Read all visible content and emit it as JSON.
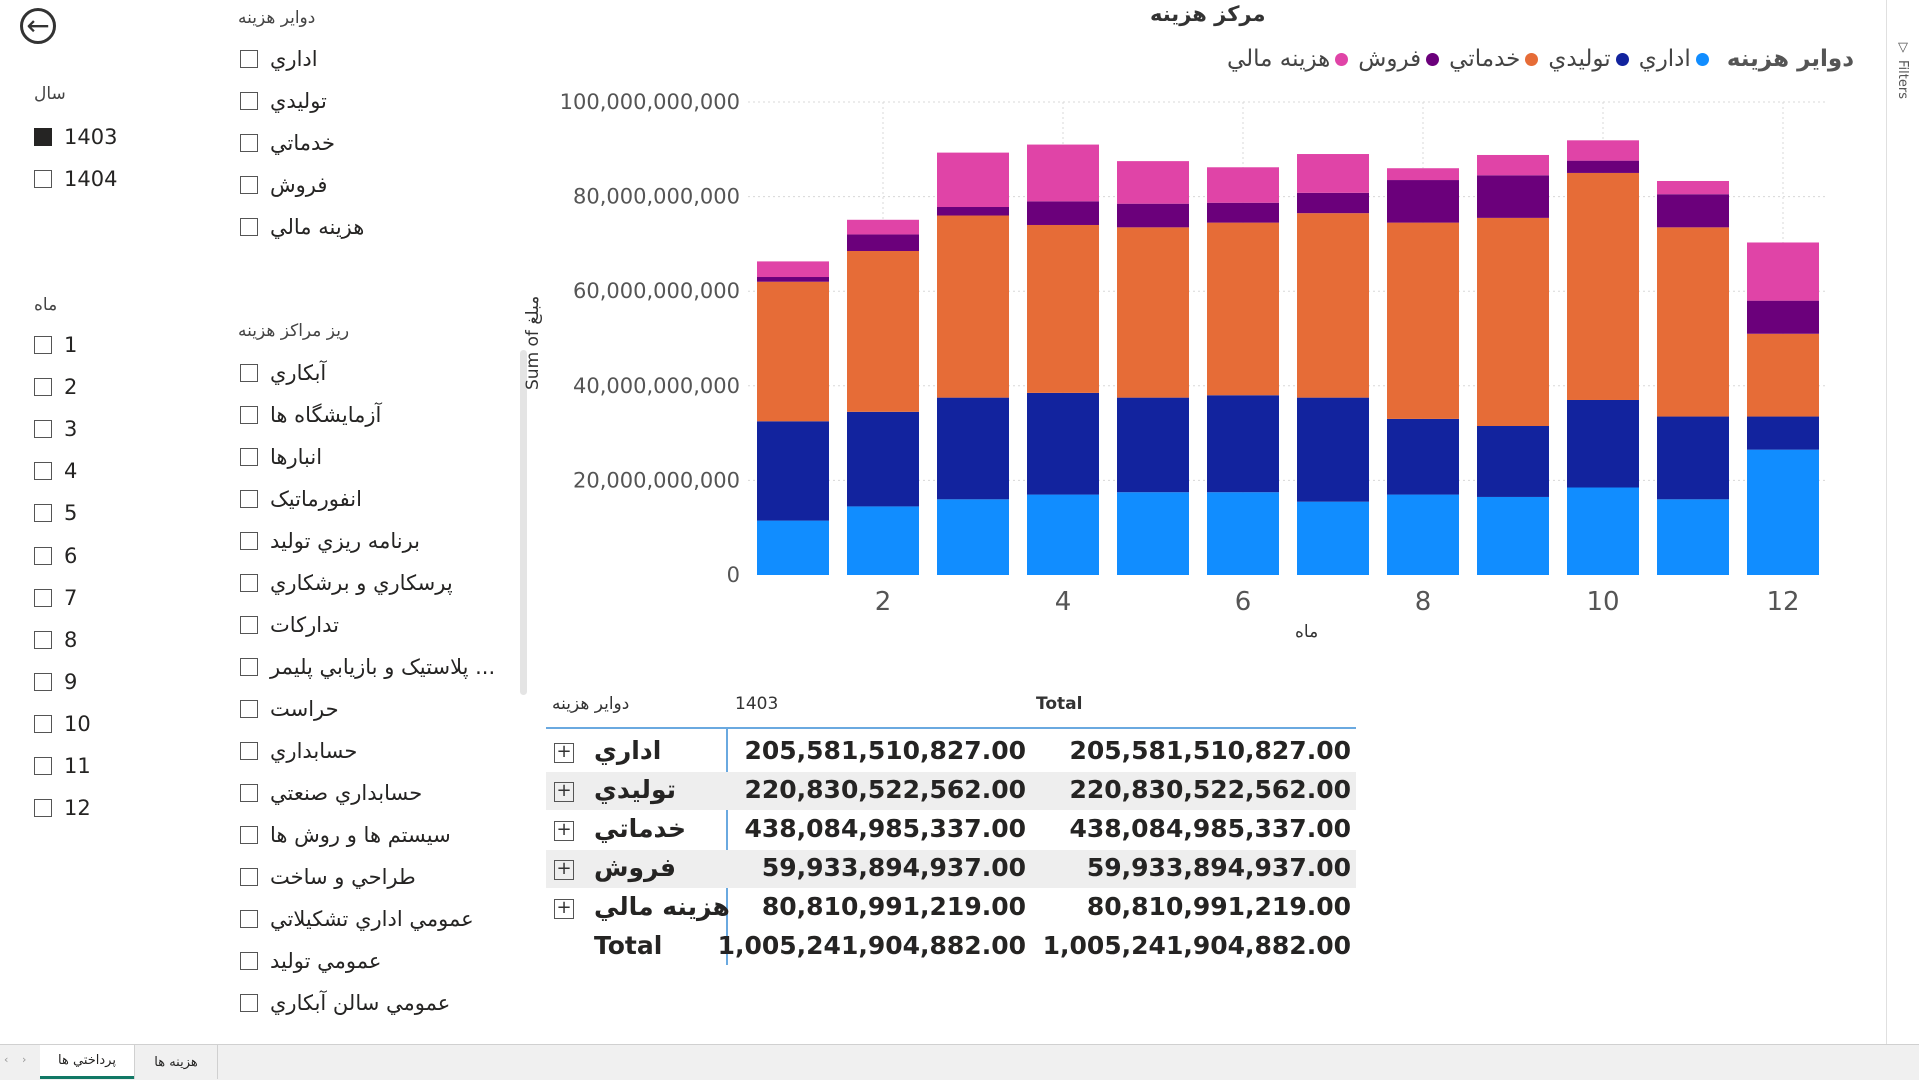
{
  "back_button": {
    "icon": "arrow-left-circle-icon"
  },
  "slicers": {
    "year": {
      "title": "سال",
      "items": [
        {
          "label": "1403",
          "checked": true
        },
        {
          "label": "1404",
          "checked": false
        }
      ]
    },
    "month": {
      "title": "ماه",
      "items": [
        "1",
        "2",
        "3",
        "4",
        "5",
        "6",
        "7",
        "8",
        "9",
        "10",
        "11",
        "12"
      ]
    },
    "cost_circles": {
      "title": "دواير هزينه",
      "items": [
        "اداري",
        "توليدي",
        "خدماتي",
        "فروش",
        "هزينه مالي"
      ]
    },
    "sub_cost_centers": {
      "title": "ريز مراكز هزينه",
      "items": [
        "آبكاري",
        "آزمايشگاه ها",
        "انبارها",
        "انفورماتيک",
        "برنامه ريزي توليد",
        "پرسكاري و برشكاري",
        "تداركات",
        "پلاستيک و بازيابي پليمر ...",
        "حراست",
        "حسابداري",
        "حسابداري صنعتي",
        "سيستم ها و روش ها",
        "طراحي و ساخت",
        "عمومي اداري تشكيلاتي",
        "عمومي توليد",
        "عمومي سالن آبكاري"
      ]
    }
  },
  "chart": {
    "title": "مركز هزينه",
    "legend_title": "دواير هزينه",
    "y_axis_label": "Sum of مبلغ",
    "x_axis_label": "ماه"
  },
  "chart_data": {
    "type": "bar",
    "stacked": true,
    "categories": [
      1,
      2,
      3,
      4,
      5,
      6,
      7,
      8,
      9,
      10,
      11,
      12
    ],
    "x_ticks": [
      2,
      4,
      6,
      8,
      10,
      12
    ],
    "y_ticks": [
      0,
      20000000000,
      40000000000,
      60000000000,
      80000000000,
      100000000000
    ],
    "y_tick_labels": [
      "0",
      "20,000,000,000",
      "40,000,000,000",
      "60,000,000,000",
      "80,000,000,000",
      "100,000,000,000"
    ],
    "ylim": [
      0,
      100000000000
    ],
    "grid": true,
    "legend_position": "top",
    "series": [
      {
        "name": "اداري",
        "color": "#118DFF",
        "values": [
          11500000000,
          14500000000,
          16000000000,
          17000000000,
          17500000000,
          17500000000,
          15500000000,
          17000000000,
          16500000000,
          18500000000,
          16000000000,
          26500000000
        ]
      },
      {
        "name": "توليدي",
        "color": "#12239E",
        "values": [
          21000000000,
          20000000000,
          21500000000,
          21500000000,
          20000000000,
          20500000000,
          22000000000,
          16000000000,
          15000000000,
          18500000000,
          17500000000,
          7000000000
        ]
      },
      {
        "name": "خدماتي",
        "color": "#E66C37",
        "values": [
          29500000000,
          34000000000,
          38500000000,
          35500000000,
          36000000000,
          36500000000,
          39000000000,
          41500000000,
          44000000000,
          48000000000,
          40000000000,
          17500000000
        ]
      },
      {
        "name": "فروش",
        "color": "#6B007B",
        "values": [
          1000000000,
          3500000000,
          1800000000,
          5000000000,
          5000000000,
          4200000000,
          4300000000,
          9000000000,
          9000000000,
          2600000000,
          7000000000,
          7000000000
        ]
      },
      {
        "name": "هزينه مالي",
        "color": "#E044A7",
        "values": [
          3300000000,
          3100000000,
          11500000000,
          12000000000,
          9000000000,
          7500000000,
          8200000000,
          2500000000,
          4300000000,
          4300000000,
          2800000000,
          12300000000
        ]
      }
    ]
  },
  "table": {
    "header_left": "دواير هزينه",
    "header_year": "1403",
    "header_total": "Total",
    "rows": [
      {
        "label": "اداري",
        "v1403": "205,581,510,827.00",
        "total": "205,581,510,827.00"
      },
      {
        "label": "توليدي",
        "v1403": "220,830,522,562.00",
        "total": "220,830,522,562.00"
      },
      {
        "label": "خدماتي",
        "v1403": "438,084,985,337.00",
        "total": "438,084,985,337.00"
      },
      {
        "label": "فروش",
        "v1403": "59,933,894,937.00",
        "total": "59,933,894,937.00"
      },
      {
        "label": "هزينه مالي",
        "v1403": "80,810,991,219.00",
        "total": "80,810,991,219.00"
      }
    ],
    "total_row": {
      "label": "Total",
      "v1403": "1,005,241,904,882.00",
      "total": "1,005,241,904,882.00"
    }
  },
  "tabs": [
    {
      "label": "پرداختي ها",
      "active": true
    },
    {
      "label": "هزينه ها",
      "active": false
    }
  ],
  "filters_pane": {
    "label": "Filters",
    "icon": "funnel-icon"
  }
}
